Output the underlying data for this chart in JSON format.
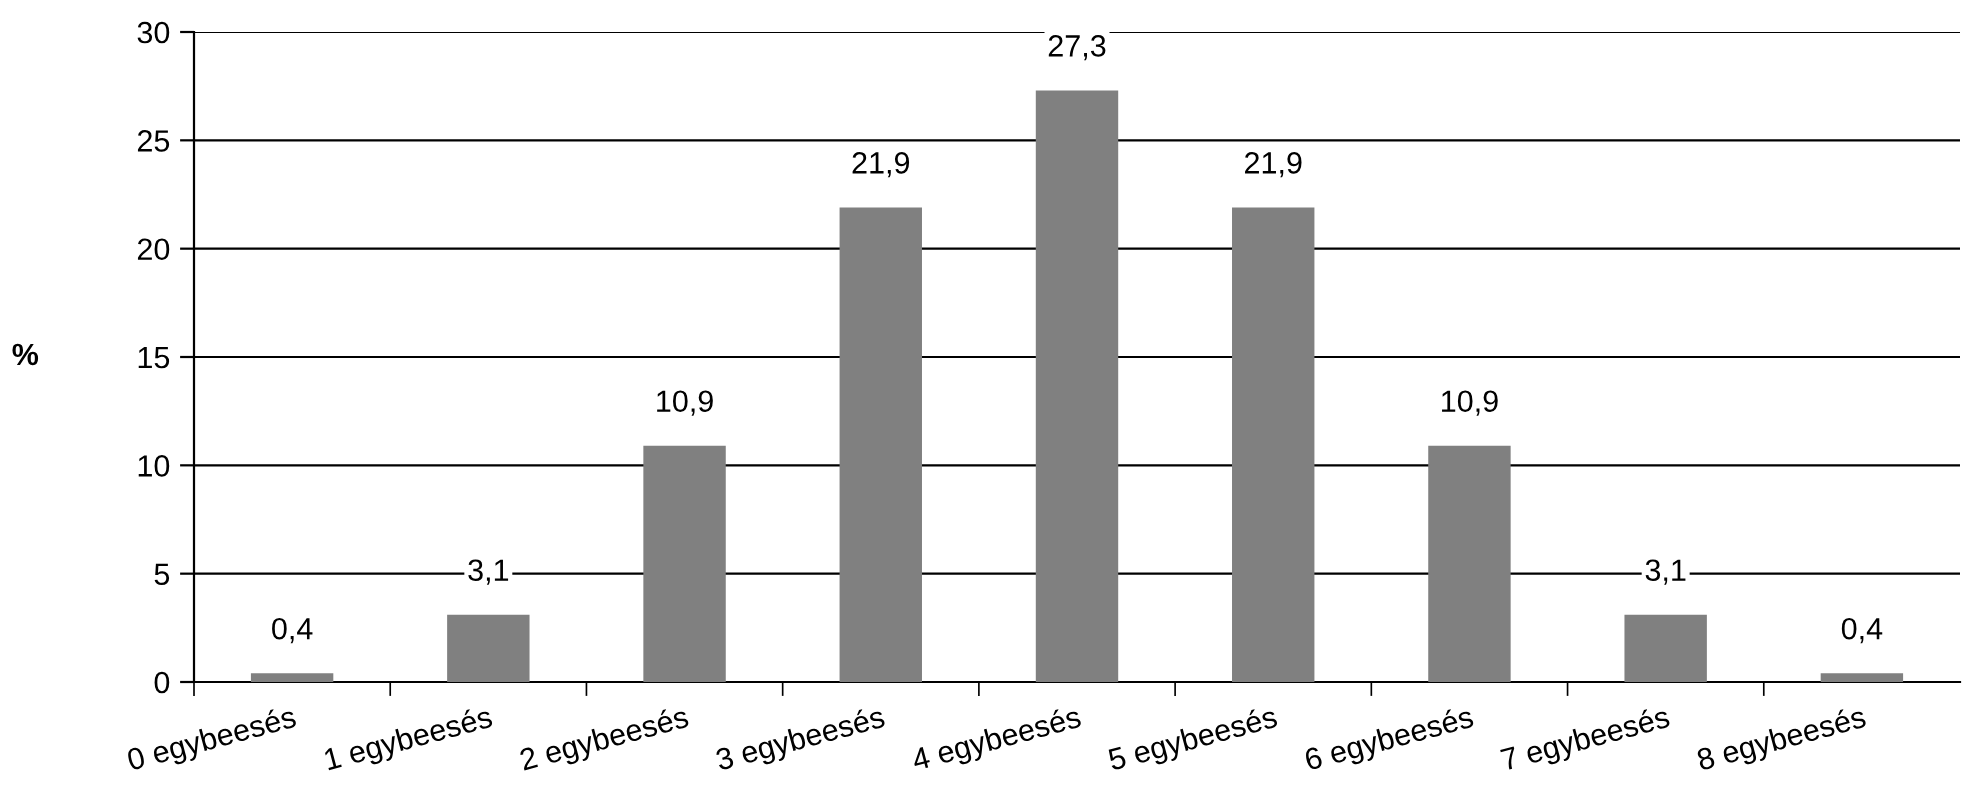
{
  "chart_data": {
    "type": "bar",
    "ylabel": "%",
    "categories": [
      "0 egybeesés",
      "1 egybeesés",
      "2 egybeesés",
      "3 egybeesés",
      "4 egybeesés",
      "5 egybeesés",
      "6 egybeesés",
      "7 egybeesés",
      "8 egybeesés"
    ],
    "values": [
      0.4,
      3.1,
      10.9,
      21.9,
      27.3,
      21.9,
      10.9,
      3.1,
      0.4
    ],
    "value_labels": [
      "0,4",
      "3,1",
      "10,9",
      "21,9",
      "27,3",
      "21,9",
      "10,9",
      "3,1",
      "0,4"
    ],
    "color": "#808080",
    "ylim": [
      0,
      30
    ],
    "yticks": [
      0,
      5,
      10,
      15,
      20,
      25,
      30
    ],
    "grid": "y"
  }
}
